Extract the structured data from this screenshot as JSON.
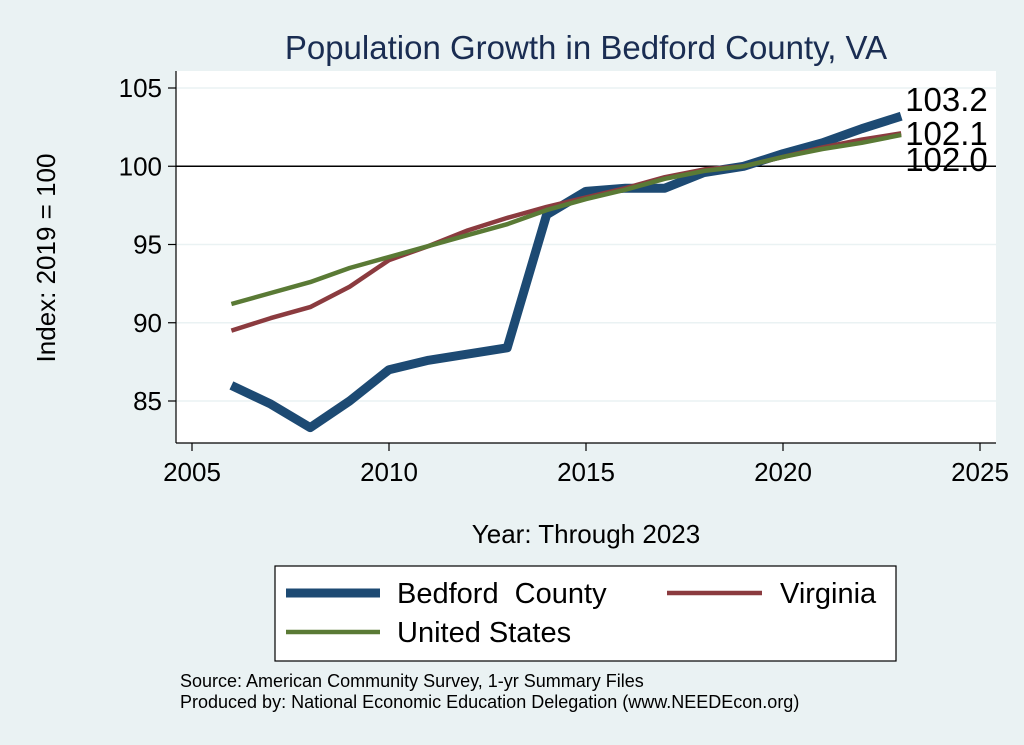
{
  "chart_data": {
    "type": "line",
    "title": "Population Growth in Bedford County, VA",
    "xlabel": "Year: Through 2023",
    "ylabel": "Index: 2019 = 100",
    "xlim": [
      2005,
      2025
    ],
    "ylim": [
      82,
      106
    ],
    "xticks": [
      2005,
      2010,
      2015,
      2020,
      2025
    ],
    "yticks": [
      85,
      90,
      95,
      100,
      105
    ],
    "reference_line": 100,
    "grid": true,
    "legend_position": "bottom",
    "x": [
      2006,
      2007,
      2008,
      2009,
      2010,
      2011,
      2012,
      2013,
      2014,
      2015,
      2016,
      2017,
      2018,
      2019,
      2020,
      2021,
      2022,
      2023
    ],
    "series": [
      {
        "name": "Bedford  County",
        "color": "#1d4a73",
        "values": [
          86.0,
          84.8,
          83.3,
          85.0,
          87.0,
          87.6,
          88.0,
          88.4,
          96.9,
          98.4,
          98.6,
          98.6,
          99.6,
          100.0,
          100.8,
          101.5,
          102.4,
          103.2
        ],
        "end_label": "103.2"
      },
      {
        "name": "Virginia",
        "color": "#8b3b3f",
        "values": [
          89.5,
          90.3,
          91.0,
          92.3,
          94.0,
          94.9,
          95.9,
          96.7,
          97.4,
          98.0,
          98.6,
          99.3,
          99.8,
          100.0,
          100.6,
          101.2,
          101.7,
          102.1
        ],
        "end_label": "102.1"
      },
      {
        "name": "United States",
        "color": "#5a7a35",
        "values": [
          91.2,
          91.9,
          92.6,
          93.5,
          94.2,
          94.9,
          95.6,
          96.3,
          97.2,
          97.9,
          98.5,
          99.2,
          99.7,
          100.0,
          100.6,
          101.1,
          101.5,
          102.0
        ],
        "end_label": "102.0"
      }
    ],
    "notes": [
      "Source: American Community Survey, 1-yr Summary Files",
      "Produced by: National Economic Education Delegation (www.NEEDEcon.org)"
    ]
  }
}
